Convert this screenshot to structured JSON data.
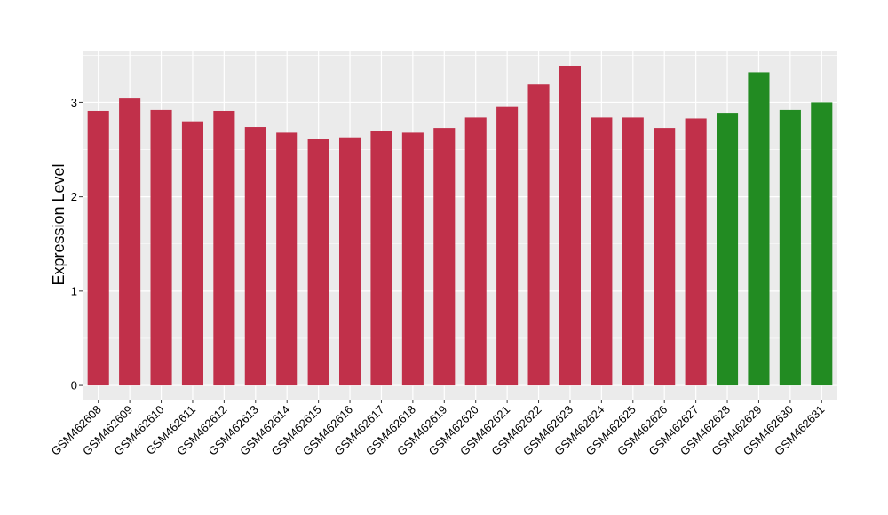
{
  "chart_data": {
    "type": "bar",
    "ylabel": "Expression Level",
    "xlabel": "",
    "ylim": [
      -0.15,
      3.55
    ],
    "yticks": [
      0,
      1,
      2,
      3
    ],
    "grid": true,
    "legend": "none",
    "colors": {
      "panel_background": "#EBEBEB",
      "grid": "#FFFFFF",
      "group_a": "#C1304A",
      "group_b": "#228B22"
    },
    "categories": [
      "GSM462608",
      "GSM462609",
      "GSM462610",
      "GSM462611",
      "GSM462612",
      "GSM462613",
      "GSM462614",
      "GSM462615",
      "GSM462616",
      "GSM462617",
      "GSM462618",
      "GSM462619",
      "GSM462620",
      "GSM462621",
      "GSM462622",
      "GSM462623",
      "GSM462624",
      "GSM462625",
      "GSM462626",
      "GSM462627",
      "GSM462628",
      "GSM462629",
      "GSM462630",
      "GSM462631"
    ],
    "values": [
      2.91,
      3.05,
      2.92,
      2.8,
      2.91,
      2.74,
      2.68,
      2.61,
      2.63,
      2.7,
      2.68,
      2.73,
      2.84,
      2.96,
      3.19,
      3.39,
      2.84,
      2.84,
      2.73,
      2.83,
      2.89,
      3.32,
      2.92,
      3.0
    ],
    "groups": [
      "a",
      "a",
      "a",
      "a",
      "a",
      "a",
      "a",
      "a",
      "a",
      "a",
      "a",
      "a",
      "a",
      "a",
      "a",
      "a",
      "a",
      "a",
      "a",
      "a",
      "b",
      "b",
      "b",
      "b"
    ]
  }
}
